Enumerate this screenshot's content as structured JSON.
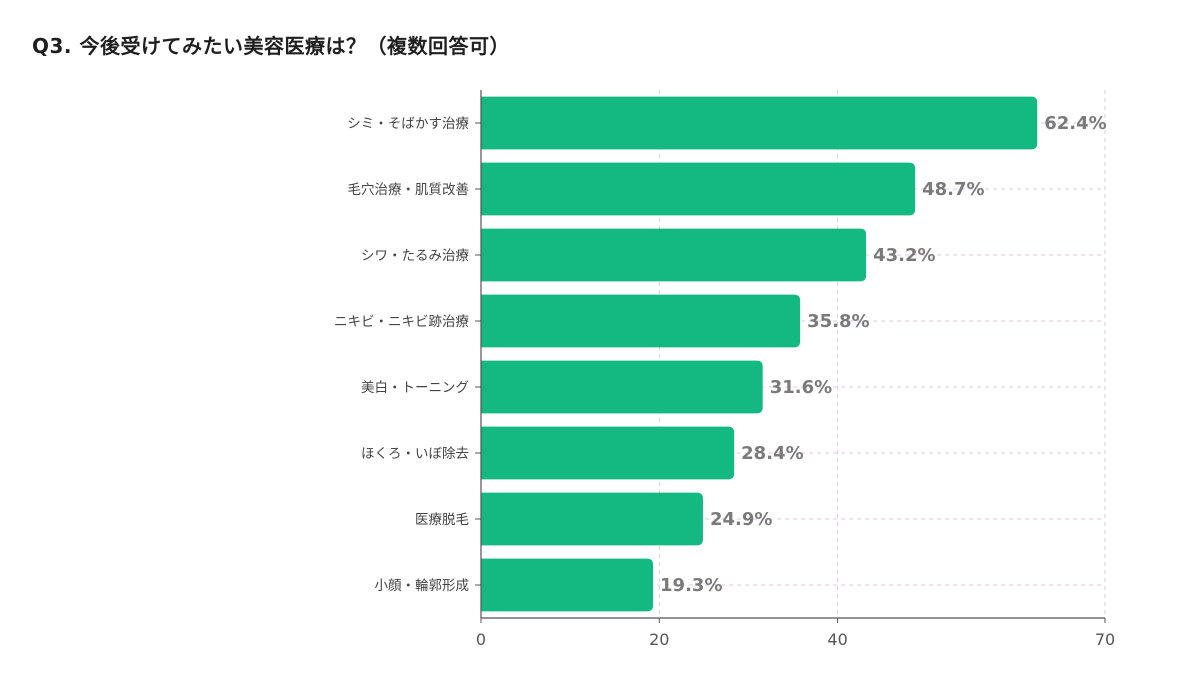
{
  "title": "Q3. 今後受けてみたい美容医療は？（複数回答可）",
  "colors": {
    "bar": "#13b981",
    "grid": "#dcc8e6",
    "axis": "#555555"
  },
  "chart_data": {
    "type": "bar",
    "orientation": "horizontal",
    "categories": [
      "シミ・そばかす治療",
      "毛穴治療・肌質改善",
      "シワ・たるみ治療",
      "ニキビ・ニキビ跡治療",
      "美白・トーニング",
      "ほくろ・いぼ除去",
      "医療脱毛",
      "小顔・輪郭形成"
    ],
    "values": [
      62.4,
      48.7,
      43.2,
      35.8,
      31.6,
      28.4,
      24.9,
      19.3
    ],
    "value_labels": [
      "62.4%",
      "48.7%",
      "43.2%",
      "35.8%",
      "31.6%",
      "28.4%",
      "24.9%",
      "19.3%"
    ],
    "xlim": [
      0,
      70
    ],
    "xticks": [
      0,
      20,
      40,
      70
    ],
    "xtick_labels": [
      "0",
      "20",
      "40",
      "70"
    ],
    "grid": true
  }
}
